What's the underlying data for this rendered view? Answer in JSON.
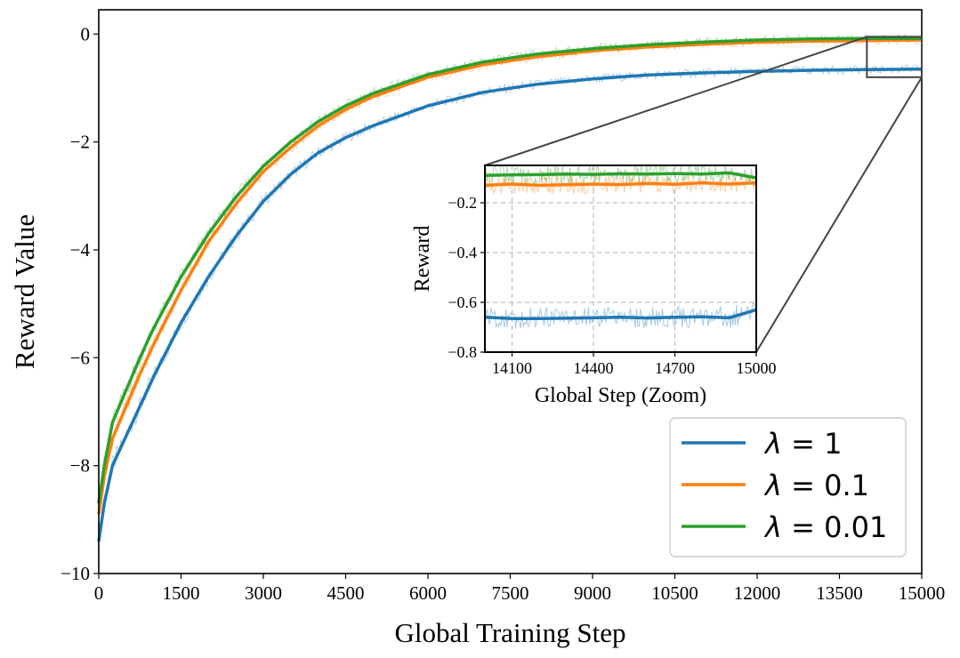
{
  "chart_data": [
    {
      "type": "line",
      "title": "",
      "xlabel": "Global Training Step",
      "ylabel": "Reward Value",
      "xlim": [
        0,
        15000
      ],
      "ylim": [
        -10,
        0.45
      ],
      "xticks": [
        "0",
        "1500",
        "3000",
        "4500",
        "6000",
        "7500",
        "9000",
        "10500",
        "12000",
        "13500",
        "15000"
      ],
      "yticks": [
        "0",
        "−2",
        "−4",
        "−6",
        "−8",
        "−10"
      ],
      "grid": false,
      "legend_position": "bottom-right",
      "x": [
        0,
        100,
        250,
        500,
        750,
        1000,
        1500,
        2000,
        2500,
        3000,
        3500,
        4000,
        4500,
        5000,
        6000,
        7000,
        8000,
        9000,
        10000,
        11000,
        12000,
        13000,
        14000,
        15000
      ],
      "series": [
        {
          "name": "λ = 1",
          "label_symbol": "λ",
          "label_value": "1",
          "color": "#1f77b4",
          "values": [
            -9.4,
            -8.7,
            -8.0,
            -7.45,
            -6.9,
            -6.35,
            -5.35,
            -4.5,
            -3.75,
            -3.1,
            -2.6,
            -2.2,
            -1.92,
            -1.7,
            -1.33,
            -1.08,
            -0.93,
            -0.83,
            -0.76,
            -0.72,
            -0.69,
            -0.67,
            -0.66,
            -0.65
          ]
        },
        {
          "name": "λ = 0.1",
          "label_symbol": "λ",
          "label_value": "0.1",
          "color": "#ff7f0e",
          "values": [
            -8.9,
            -8.2,
            -7.5,
            -6.9,
            -6.3,
            -5.75,
            -4.75,
            -3.85,
            -3.15,
            -2.55,
            -2.1,
            -1.7,
            -1.4,
            -1.16,
            -0.8,
            -0.57,
            -0.42,
            -0.31,
            -0.24,
            -0.19,
            -0.15,
            -0.13,
            -0.12,
            -0.11
          ]
        },
        {
          "name": "λ = 0.01",
          "label_symbol": "λ",
          "label_value": "0.01",
          "color": "#2ca02c",
          "values": [
            -8.7,
            -8.0,
            -7.2,
            -6.6,
            -6.0,
            -5.45,
            -4.5,
            -3.7,
            -3.02,
            -2.45,
            -2.0,
            -1.62,
            -1.33,
            -1.1,
            -0.75,
            -0.52,
            -0.37,
            -0.27,
            -0.2,
            -0.15,
            -0.11,
            -0.09,
            -0.08,
            -0.08
          ]
        }
      ]
    },
    {
      "type": "line",
      "title": "",
      "xlabel": "Global Step (Zoom)",
      "ylabel": "Reward",
      "xlim": [
        14000,
        15000
      ],
      "ylim": [
        -0.8,
        -0.05
      ],
      "xticks": [
        "14100",
        "14400",
        "14700",
        "15000"
      ],
      "yticks": [
        "−0.2",
        "−0.4",
        "−0.6",
        "−0.8"
      ],
      "grid": true,
      "x": [
        14000,
        14100,
        14200,
        14300,
        14400,
        14500,
        14600,
        14700,
        14800,
        14900,
        15000
      ],
      "series": [
        {
          "name": "λ = 1",
          "color": "#1f77b4",
          "values": [
            -0.66,
            -0.665,
            -0.665,
            -0.664,
            -0.662,
            -0.66,
            -0.663,
            -0.66,
            -0.658,
            -0.662,
            -0.63
          ]
        },
        {
          "name": "λ = 0.1",
          "color": "#ff7f0e",
          "values": [
            -0.13,
            -0.125,
            -0.13,
            -0.128,
            -0.125,
            -0.127,
            -0.123,
            -0.126,
            -0.12,
            -0.125,
            -0.12
          ]
        },
        {
          "name": "λ = 0.01",
          "color": "#2ca02c",
          "values": [
            -0.09,
            -0.088,
            -0.087,
            -0.085,
            -0.086,
            -0.084,
            -0.085,
            -0.083,
            -0.085,
            -0.08,
            -0.1
          ]
        }
      ]
    }
  ]
}
